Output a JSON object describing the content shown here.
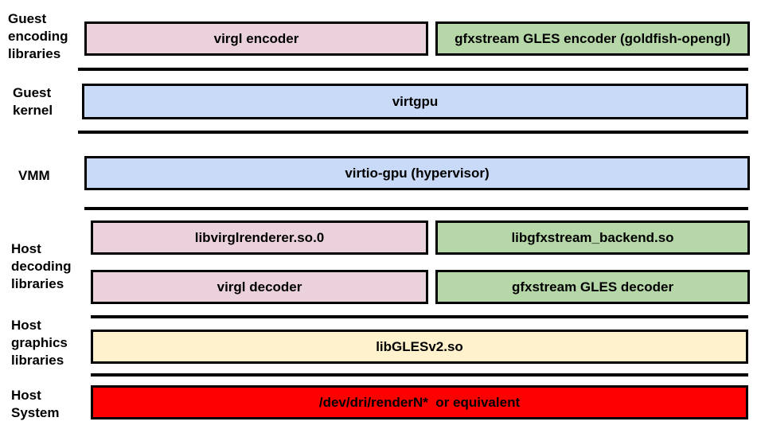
{
  "layers": {
    "guest_encoding": "Guest encoding libraries",
    "guest_kernel": "Guest kernel",
    "vmm": "VMM",
    "host_decoding": "Host decoding libraries",
    "host_graphics": "Host graphics libraries",
    "host_system": "Host System"
  },
  "boxes": {
    "virgl_encoder": "virgl encoder",
    "gfxstream_encoder": "gfxstream GLES encoder (goldfish-opengl)",
    "virtgpu": "virtgpu",
    "virtio_gpu": "virtio-gpu (hypervisor)",
    "libvirglrenderer": "libvirglrenderer.so.0",
    "libgfxstream_backend": "libgfxstream_backend.so",
    "virgl_decoder": "virgl decoder",
    "gfxstream_decoder": "gfxstream GLES decoder",
    "libgles": "libGLESv2.so",
    "render_node": "/dev/dri/renderN*  or equivalent"
  },
  "colors": {
    "virgl": "#ead1dc",
    "gfxstream": "#b6d7a8",
    "kernel_vmm": "#c9daf8",
    "host_graphics": "#fff2cc",
    "host_system": "#ff0000"
  }
}
